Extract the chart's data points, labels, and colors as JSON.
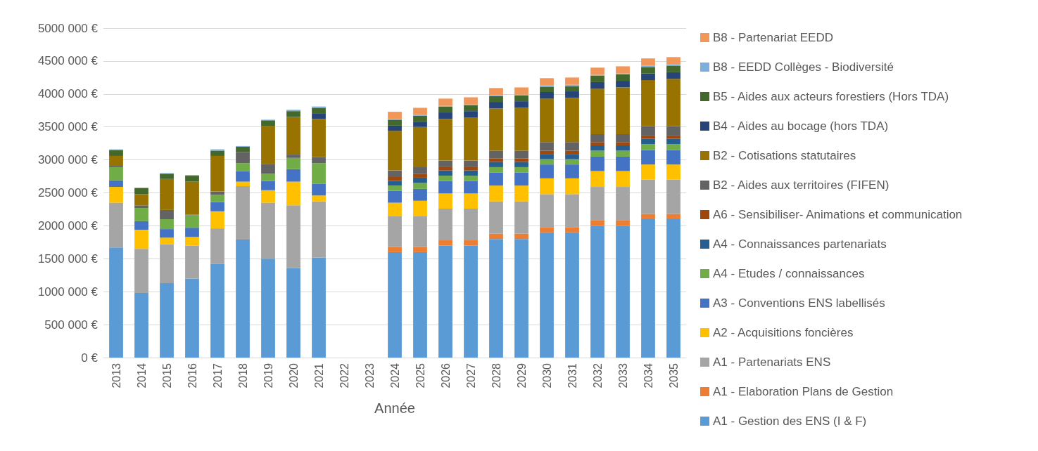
{
  "chart_data": {
    "type": "bar",
    "stacked": true,
    "xlabel": "Année",
    "legend": "right",
    "grid": "y",
    "categories": [
      "2013",
      "2014",
      "2015",
      "2016",
      "2017",
      "2018",
      "2019",
      "2020",
      "2021",
      "2022",
      "2023",
      "2024",
      "2025",
      "2026",
      "2027",
      "2028",
      "2029",
      "2030",
      "2031",
      "2032",
      "2033",
      "2034",
      "2035"
    ],
    "ylim": [
      0,
      5000000
    ],
    "yticks": [
      {
        "value": 0,
        "label": "0 €"
      },
      {
        "value": 500000,
        "label": "500 000 €"
      },
      {
        "value": 1000000,
        "label": "1000 000 €"
      },
      {
        "value": 1500000,
        "label": "1500 000 €"
      },
      {
        "value": 2000000,
        "label": "2000 000 €"
      },
      {
        "value": 2500000,
        "label": "2500 000 €"
      },
      {
        "value": 3000000,
        "label": "3000 000 €"
      },
      {
        "value": 3500000,
        "label": "3500 000 €"
      },
      {
        "value": 4000000,
        "label": "4000 000 €"
      },
      {
        "value": 4500000,
        "label": "4500 000 €"
      },
      {
        "value": 5000000,
        "label": "5000 000 €"
      }
    ],
    "series": [
      {
        "name": "A1 - Gestion des ENS (I & F)",
        "color": "#5b9bd5",
        "values": [
          1670000,
          980000,
          1130000,
          1200000,
          1420000,
          1790000,
          1500000,
          1360000,
          1520000,
          null,
          null,
          1600000,
          1600000,
          1700000,
          1700000,
          1800000,
          1800000,
          1900000,
          1900000,
          2000000,
          2000000,
          2100000,
          2100000
        ]
      },
      {
        "name": "A1 - Elaboration Plans de Gestion",
        "color": "#ed7d31",
        "values": [
          null,
          null,
          null,
          null,
          null,
          null,
          null,
          null,
          null,
          null,
          null,
          80000,
          80000,
          80000,
          80000,
          80000,
          80000,
          80000,
          80000,
          80000,
          80000,
          80000,
          80000
        ]
      },
      {
        "name": "A1 - Partenariats ENS",
        "color": "#a5a5a5",
        "values": [
          680000,
          670000,
          590000,
          500000,
          540000,
          810000,
          850000,
          950000,
          850000,
          null,
          null,
          470000,
          470000,
          480000,
          480000,
          490000,
          490000,
          500000,
          500000,
          510000,
          510000,
          520000,
          520000
        ]
      },
      {
        "name": "A2 - Acquisitions foncières",
        "color": "#ffc000",
        "values": [
          240000,
          290000,
          100000,
          130000,
          260000,
          70000,
          190000,
          360000,
          90000,
          null,
          null,
          200000,
          230000,
          230000,
          230000,
          240000,
          240000,
          240000,
          240000,
          240000,
          240000,
          230000,
          230000
        ]
      },
      {
        "name": "A3 - Conventions ENS labellisés",
        "color": "#4472c4",
        "values": [
          100000,
          130000,
          130000,
          140000,
          140000,
          160000,
          140000,
          190000,
          180000,
          null,
          null,
          180000,
          180000,
          190000,
          190000,
          200000,
          200000,
          210000,
          210000,
          220000,
          220000,
          220000,
          220000
        ]
      },
      {
        "name": "A4 - Etudes / connaissances",
        "color": "#70ad47",
        "values": [
          200000,
          200000,
          150000,
          190000,
          110000,
          120000,
          110000,
          170000,
          310000,
          null,
          null,
          80000,
          90000,
          80000,
          80000,
          80000,
          80000,
          80000,
          80000,
          90000,
          90000,
          90000,
          90000
        ]
      },
      {
        "name": "A4 - Connaissances partenariats",
        "color": "#255e91",
        "values": [
          null,
          null,
          null,
          null,
          null,
          null,
          null,
          null,
          null,
          null,
          null,
          70000,
          80000,
          80000,
          80000,
          80000,
          80000,
          80000,
          80000,
          80000,
          80000,
          80000,
          80000
        ]
      },
      {
        "name": "A6 - Sensibiliser- Animations et communication",
        "color": "#9e480e",
        "values": [
          null,
          null,
          null,
          null,
          null,
          null,
          null,
          null,
          null,
          null,
          null,
          60000,
          60000,
          50000,
          50000,
          50000,
          50000,
          50000,
          50000,
          50000,
          50000,
          50000,
          50000
        ]
      },
      {
        "name": "B2 - Aides aux territoires (FIFEN)",
        "color": "#636363",
        "values": [
          20000,
          40000,
          140000,
          10000,
          50000,
          170000,
          150000,
          50000,
          90000,
          null,
          null,
          100000,
          100000,
          100000,
          100000,
          120000,
          120000,
          130000,
          130000,
          120000,
          120000,
          140000,
          140000
        ]
      },
      {
        "name": "B2 - Cotisations statutaires",
        "color": "#997300",
        "values": [
          150000,
          170000,
          470000,
          500000,
          540000,
          null,
          570000,
          570000,
          580000,
          null,
          null,
          600000,
          610000,
          630000,
          650000,
          640000,
          650000,
          660000,
          670000,
          690000,
          710000,
          700000,
          720000
        ]
      },
      {
        "name": "B4 - Aides au bocage (hors TDA)",
        "color": "#264478",
        "values": [
          null,
          null,
          null,
          null,
          null,
          null,
          null,
          null,
          80000,
          null,
          null,
          80000,
          80000,
          100000,
          100000,
          100000,
          100000,
          100000,
          100000,
          100000,
          100000,
          100000,
          100000
        ]
      },
      {
        "name": "B5 - Aides aux acteurs forestiers (Hors TDA)",
        "color": "#43682b",
        "values": [
          90000,
          90000,
          80000,
          90000,
          80000,
          80000,
          90000,
          90000,
          90000,
          null,
          null,
          90000,
          90000,
          90000,
          90000,
          90000,
          90000,
          80000,
          80000,
          100000,
          100000,
          100000,
          100000
        ]
      },
      {
        "name": "B8 - EEDD Collèges - Biodiversité",
        "color": "#7cafdd",
        "values": [
          10000,
          10000,
          10000,
          10000,
          20000,
          10000,
          10000,
          20000,
          20000,
          null,
          null,
          10000,
          10000,
          10000,
          10000,
          10000,
          10000,
          20000,
          20000,
          10000,
          10000,
          20000,
          20000
        ]
      },
      {
        "name": "B8 - Partenariat EEDD",
        "color": "#f1975a",
        "values": [
          null,
          null,
          null,
          null,
          null,
          null,
          null,
          null,
          null,
          null,
          null,
          110000,
          110000,
          110000,
          110000,
          110000,
          110000,
          110000,
          110000,
          110000,
          110000,
          110000,
          110000
        ]
      }
    ]
  }
}
